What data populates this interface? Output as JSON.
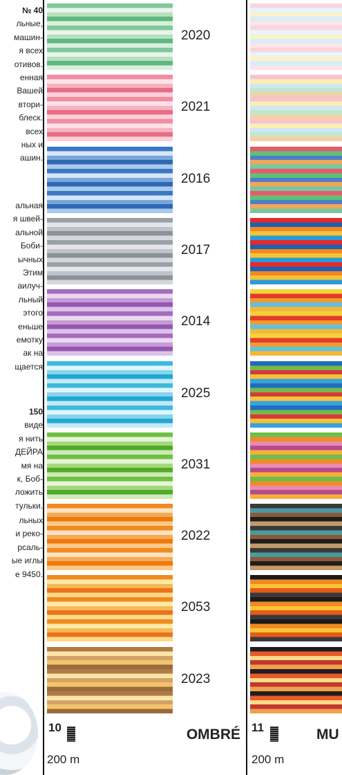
{
  "left_text": {
    "blocks": [
      [
        "№ 40",
        "льные,",
        "машин-",
        "я всех",
        "отивов.",
        "енная",
        "Вашей",
        "втори-",
        "блеск.",
        "всех",
        "ных и",
        "ашин."
      ],
      [
        "альная",
        "я швей-",
        "альной",
        "Боби-",
        "ычных",
        "Этим",
        "аилуч-",
        "льный",
        "этого",
        "еньше",
        "емотку",
        "ак на",
        "щается"
      ],
      [
        "150",
        "виде",
        "я нить",
        "ДЕЙРА",
        "мя на",
        "к, Боб-",
        "ложить",
        "тульки."
      ],
      [
        "льных",
        "и реко-",
        "рсаль-",
        "ые иглы",
        "е 9450."
      ]
    ]
  },
  "swatches": [
    {
      "code": "2020"
    },
    {
      "code": "2021"
    },
    {
      "code": "2016"
    },
    {
      "code": "2017"
    },
    {
      "code": "2014"
    },
    {
      "code": "2025"
    },
    {
      "code": "2031"
    },
    {
      "code": "2022"
    },
    {
      "code": "2053"
    },
    {
      "code": "2023"
    }
  ],
  "footer_left": {
    "page": "10",
    "title": "OMBRÉ",
    "length": "200 m"
  },
  "footer_right": {
    "page": "11",
    "title": "MU",
    "length": "200 m"
  }
}
